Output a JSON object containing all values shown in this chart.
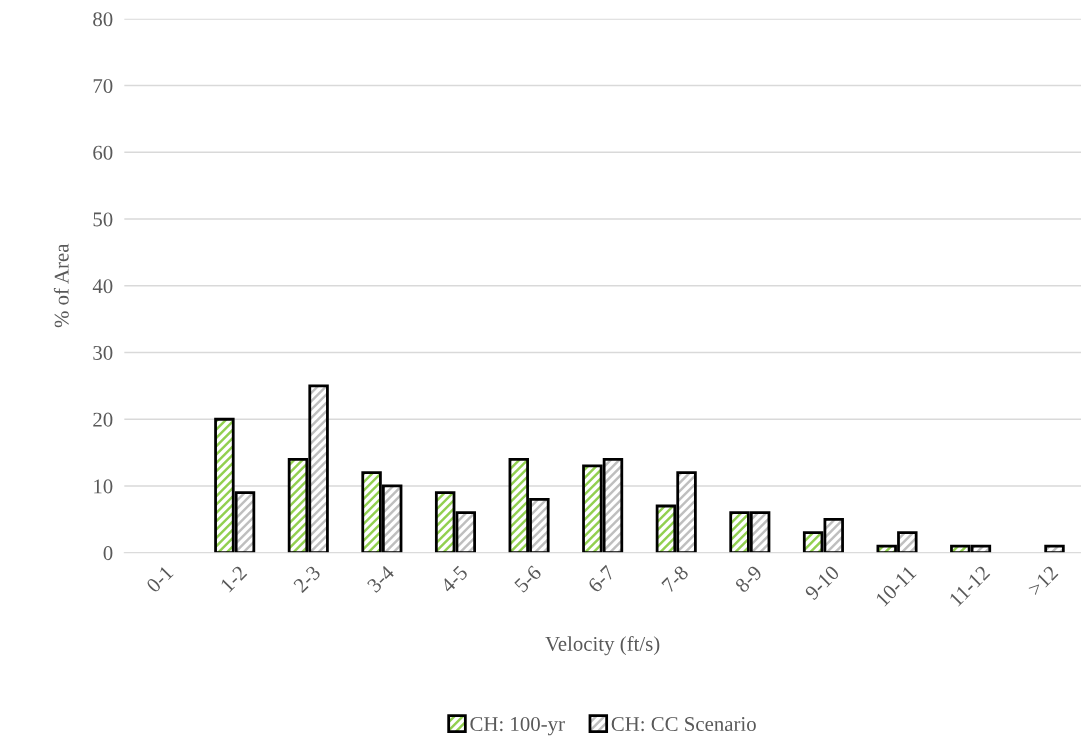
{
  "chart_data": {
    "type": "bar",
    "xlabel": "Velocity (ft/s)",
    "ylabel": "% of Area",
    "categories": [
      "0-1",
      "1-2",
      "2-3",
      "3-4",
      "4-5",
      "5-6",
      "6-7",
      "7-8",
      "8-9",
      "9-10",
      "10-11",
      "11-12",
      ">12"
    ],
    "series": [
      {
        "name": "CH: 100-yr",
        "color": "#92d050",
        "values": [
          0,
          20,
          14,
          12,
          9,
          14,
          13,
          7,
          6,
          3,
          1,
          1,
          0
        ]
      },
      {
        "name": "CH: CC Scenario",
        "color": "#bfbfbf",
        "values": [
          0,
          9,
          25,
          10,
          6,
          8,
          14,
          12,
          6,
          5,
          3,
          1,
          1
        ]
      }
    ],
    "ylim": [
      0,
      80
    ],
    "yticks": [
      0,
      10,
      20,
      30,
      40,
      50,
      60,
      70,
      80
    ],
    "grid": "y",
    "legend": "bottom"
  }
}
